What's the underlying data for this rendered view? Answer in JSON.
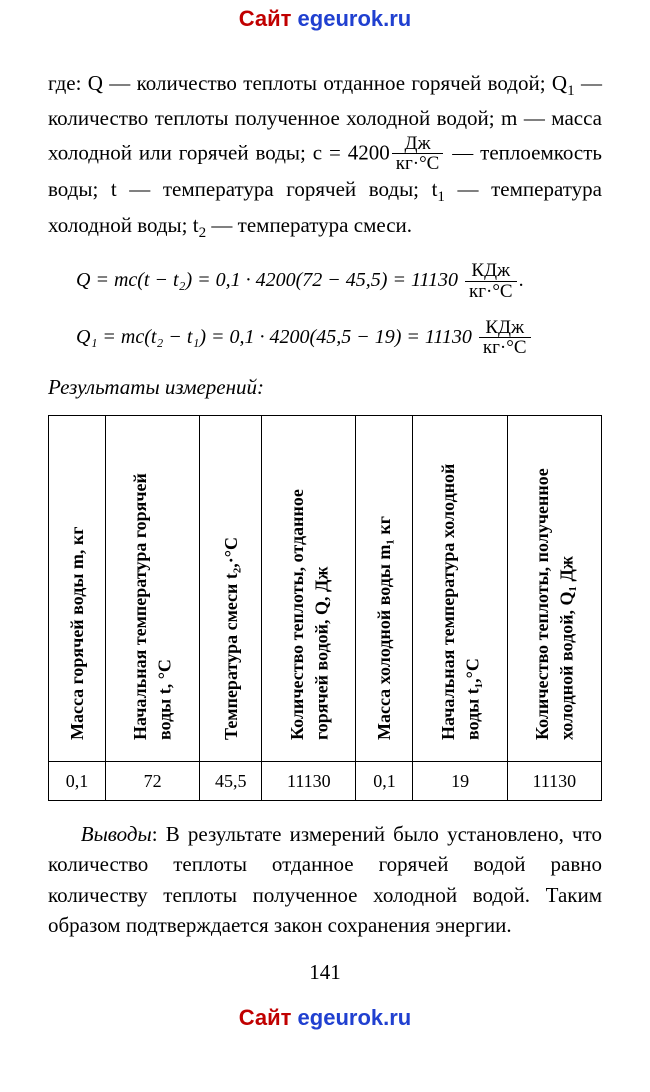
{
  "watermark": {
    "text_prefix": "Сайт ",
    "text_domain": "egeurok.ru"
  },
  "definitions": {
    "line1": "где: Q — количество теплоты отданное горячей водой; Q",
    "sub1": "1",
    "line2": " — количество теплоты полученное холодной водой; m — масса холодной или горячей воды; c = 4200",
    "frac_num": "Дж",
    "frac_den": "кг·°С",
    "line3": " — теплоемкость воды; t — температура горячей воды; t",
    "line4": " — температура холодной воды; t",
    "sub2": "2",
    "line5": " — температура смеси."
  },
  "equations": {
    "eq1_lhs": "Q = mc(t − t₂) = 0,1 · 4200(72 − 45,5) = 11130 ",
    "eq2_lhs": "Q₁ = mc(t₂ − t₁) = 0,1 · 4200(45,5 − 19) = 11130 ",
    "unit_num": "КДж",
    "unit_den": "кг·°С",
    "dot": "."
  },
  "results_title": "Результаты измерений:",
  "table": {
    "headers": [
      "Масса горячей воды m, кг",
      "Начальная температура горячей воды t, °С",
      "Температура смеси t₂,·°С",
      "Количество теплоты, отданное горячей водой, Q, Дж",
      "Масса холодной воды m₁ кг",
      "Начальная температура холодной воды t₁,°С",
      "Количество теплоты, полученное холодной водой, Q₁ Дж"
    ],
    "values": [
      "0,1",
      "72",
      "45,5",
      "11130",
      "0,1",
      "19",
      "11130"
    ]
  },
  "conclusion": {
    "lead": "Выводы",
    "text": ": В результате измерений было установлено, что количество теплоты отданное горячей водой равно количеству теплоты полученное холодной водой. Таким образом подтверждается закон сохранения энергии."
  },
  "page_number": "141",
  "style": {
    "body_fontsize": 21,
    "eq_fontsize": 20,
    "table_fontsize": 18,
    "watermark_red": "#c00000",
    "watermark_blue": "#2040d0",
    "text_color": "#000000",
    "background": "#ffffff"
  }
}
